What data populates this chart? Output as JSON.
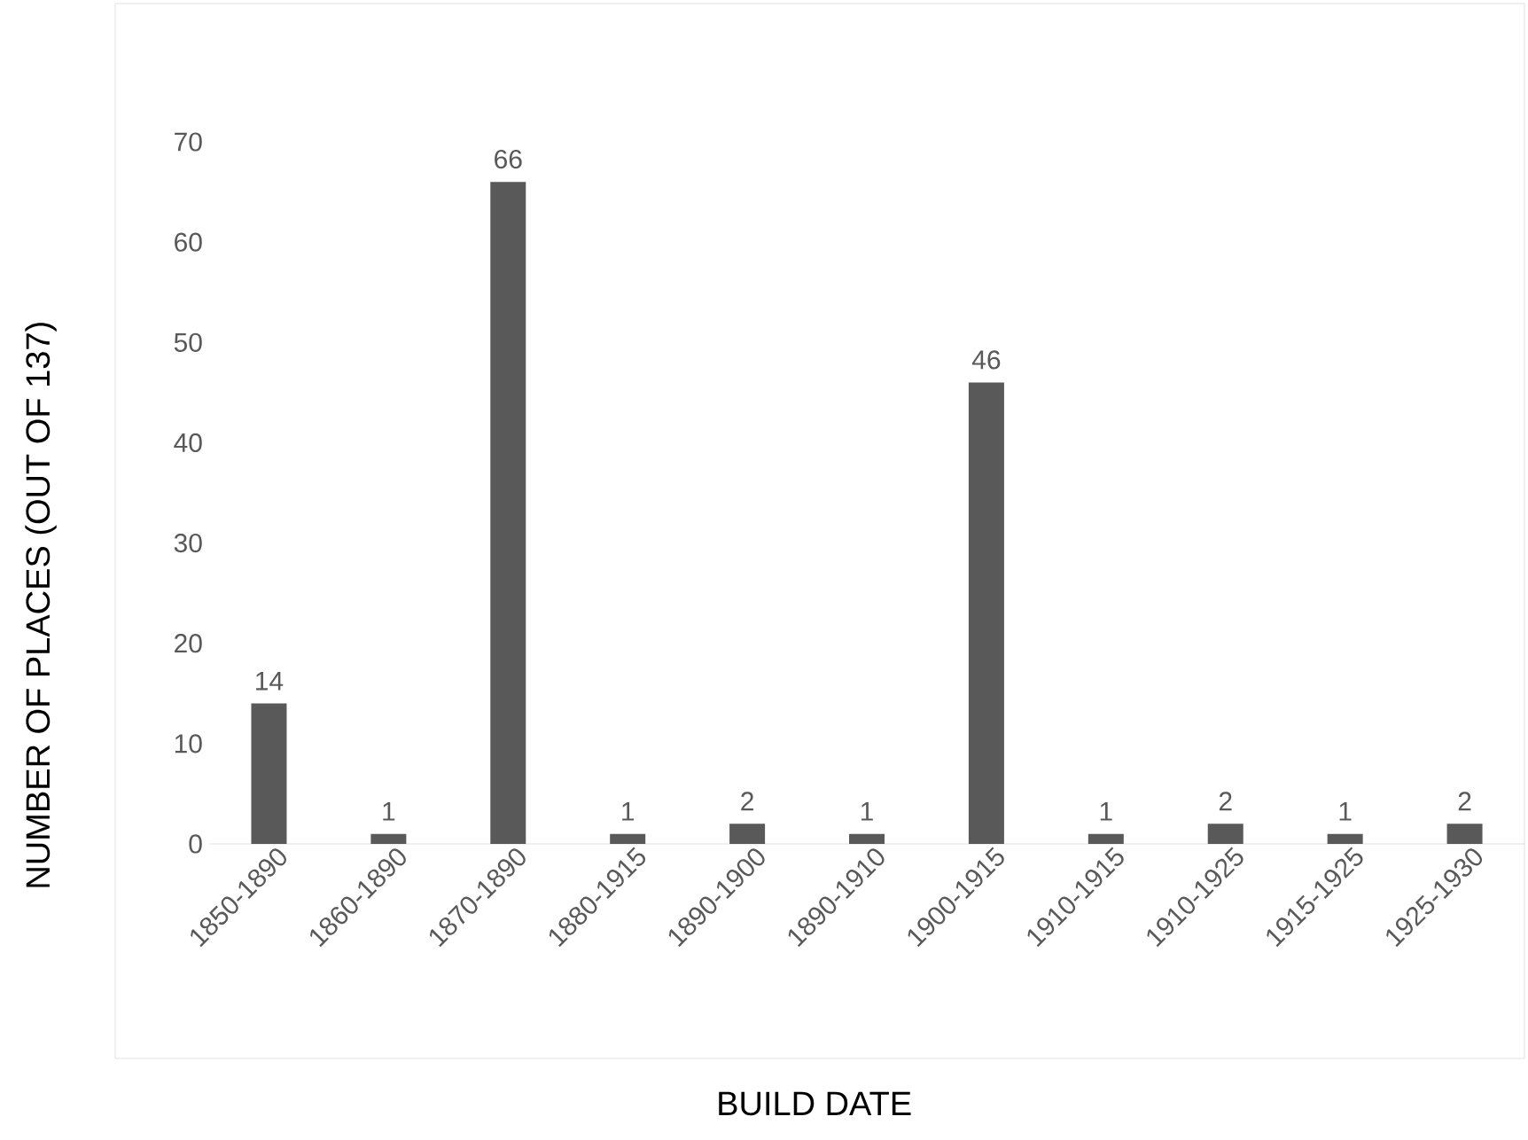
{
  "chart_data": {
    "type": "bar",
    "xlabel": "BUILD DATE",
    "ylabel": "NUMBER OF PLACES (OUT OF 137)",
    "categories": [
      "1850-1890",
      "1860-1890",
      "1870-1890",
      "1880-1915",
      "1890-1900",
      "1890-1910",
      "1900-1915",
      "1910-1915",
      "1910-1925",
      "1915-1925",
      "1925-1930"
    ],
    "values": [
      14,
      1,
      66,
      1,
      2,
      1,
      46,
      1,
      2,
      1,
      2
    ],
    "color": "#595959",
    "ylim": [
      0,
      70
    ],
    "yticks": [
      0,
      10,
      20,
      30,
      40,
      50,
      60,
      70
    ],
    "data_labels": true
  }
}
